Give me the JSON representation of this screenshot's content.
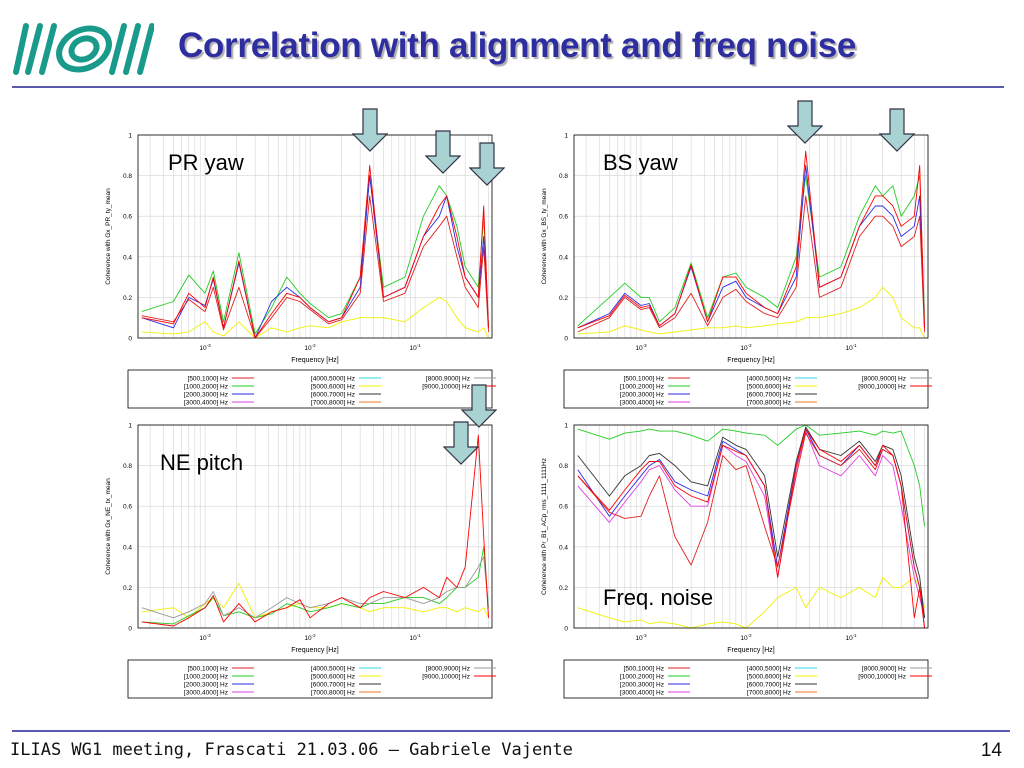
{
  "slide": {
    "title": "Correlation with alignment and freq noise",
    "footer": "ILIAS WG1 meeting, Frascati 21.03.06 – Gabriele Vajente",
    "page_number": "14",
    "logo_icon": "ego-virgo-logo",
    "colors": {
      "title": "#2e2ea0",
      "rule": "#5a5ab0",
      "logo": "#1a9a8a",
      "arrow_fill": "#a9d3d3"
    }
  },
  "legend": [
    {
      "label": "[500,1000] Hz",
      "color": "#e02020"
    },
    {
      "label": "[1000,2000] Hz",
      "color": "#22cc22"
    },
    {
      "label": "[2000,3000] Hz",
      "color": "#2a2ae8"
    },
    {
      "label": "[3000,4000] Hz",
      "color": "#e040e0"
    },
    {
      "label": "[4000,5000] Hz",
      "color": "#30d8e8"
    },
    {
      "label": "[5000,6000] Hz",
      "color": "#f0f000"
    },
    {
      "label": "[6000,7000] Hz",
      "color": "#333333"
    },
    {
      "label": "[7000,8000] Hz",
      "color": "#f07820"
    },
    {
      "label": "[8000,9000] Hz",
      "color": "#999999"
    },
    {
      "label": "[9000,10000] Hz",
      "color": "#ff0000"
    }
  ],
  "chart_data": [
    {
      "type": "line",
      "panel_label": "PR yaw",
      "xlabel": "Frequency [Hz]",
      "ylabel": "Coherence with Gx_PR_ty_mean",
      "xscale": "log",
      "xlim": [
        0.00023,
        0.54
      ],
      "ylim": [
        0,
        1
      ],
      "grid": true,
      "xticks": [
        {
          "base": "10",
          "exp": "-3",
          "value": 0.001
        },
        {
          "base": "10",
          "exp": "-2",
          "value": 0.01
        },
        {
          "base": "10",
          "exp": "-1",
          "value": 0.1
        }
      ],
      "yticks": [
        "0",
        "0.2",
        "0.4",
        "0.6",
        "0.8",
        "1"
      ],
      "legend_placement": "bottom",
      "x": [
        0.00025,
        0.0005,
        0.0007,
        0.001,
        0.0012,
        0.0015,
        0.0021,
        0.003,
        0.0043,
        0.006,
        0.008,
        0.01,
        0.015,
        0.02,
        0.03,
        0.037,
        0.05,
        0.08,
        0.12,
        0.17,
        0.2,
        0.25,
        0.3,
        0.4,
        0.45,
        0.5
      ],
      "series": [
        {
          "name": "[5000,6000] Hz",
          "color": "#f0f000",
          "values": [
            0.03,
            0.02,
            0.03,
            0.08,
            0.03,
            0.01,
            0.08,
            0.0,
            0.05,
            0.03,
            0.05,
            0.06,
            0.05,
            0.08,
            0.1,
            0.1,
            0.1,
            0.08,
            0.15,
            0.2,
            0.18,
            0.1,
            0.05,
            0.03,
            0.05,
            0.0
          ]
        },
        {
          "name": "[1000,2000] Hz",
          "color": "#22cc22",
          "values": [
            0.13,
            0.18,
            0.31,
            0.22,
            0.33,
            0.08,
            0.42,
            0.02,
            0.15,
            0.3,
            0.22,
            0.17,
            0.1,
            0.12,
            0.3,
            0.8,
            0.25,
            0.3,
            0.6,
            0.75,
            0.7,
            0.55,
            0.35,
            0.25,
            0.6,
            0.05
          ]
        },
        {
          "name": "[2000,3000] Hz",
          "color": "#2a2ae8",
          "values": [
            0.1,
            0.05,
            0.2,
            0.16,
            0.29,
            0.05,
            0.37,
            0.0,
            0.18,
            0.25,
            0.2,
            0.15,
            0.08,
            0.1,
            0.25,
            0.8,
            0.2,
            0.25,
            0.5,
            0.6,
            0.7,
            0.45,
            0.3,
            0.2,
            0.5,
            0.05
          ]
        },
        {
          "name": "[500,1000] Hz",
          "color": "#e02020",
          "values": [
            0.11,
            0.08,
            0.19,
            0.13,
            0.25,
            0.04,
            0.25,
            0.0,
            0.1,
            0.2,
            0.18,
            0.14,
            0.07,
            0.09,
            0.22,
            0.7,
            0.18,
            0.22,
            0.45,
            0.55,
            0.6,
            0.4,
            0.25,
            0.15,
            0.45,
            0.03
          ]
        },
        {
          "name": "[9000,10000] Hz",
          "color": "#ff0000",
          "values": [
            0.1,
            0.07,
            0.22,
            0.15,
            0.3,
            0.05,
            0.38,
            0.0,
            0.12,
            0.22,
            0.2,
            0.15,
            0.08,
            0.1,
            0.3,
            0.85,
            0.2,
            0.25,
            0.5,
            0.65,
            0.7,
            0.5,
            0.3,
            0.2,
            0.65,
            0.05
          ]
        }
      ]
    },
    {
      "type": "line",
      "panel_label": "BS yaw",
      "xlabel": "Frequency [Hz]",
      "ylabel": "Coherence with Gx_BS_ty_mean",
      "xscale": "log",
      "xlim": [
        0.00023,
        0.54
      ],
      "ylim": [
        0,
        1
      ],
      "grid": true,
      "xticks": [
        {
          "base": "10",
          "exp": "-3",
          "value": 0.001
        },
        {
          "base": "10",
          "exp": "-2",
          "value": 0.01
        },
        {
          "base": "10",
          "exp": "-1",
          "value": 0.1
        }
      ],
      "yticks": [
        "0",
        "0.2",
        "0.4",
        "0.6",
        "0.8",
        "1"
      ],
      "legend_placement": "bottom",
      "x": [
        0.00025,
        0.0005,
        0.0007,
        0.001,
        0.0012,
        0.0015,
        0.0021,
        0.003,
        0.0043,
        0.006,
        0.008,
        0.01,
        0.015,
        0.02,
        0.03,
        0.037,
        0.05,
        0.08,
        0.12,
        0.17,
        0.2,
        0.25,
        0.3,
        0.4,
        0.45,
        0.5
      ],
      "series": [
        {
          "name": "[5000,6000] Hz",
          "color": "#f0f000",
          "values": [
            0.02,
            0.03,
            0.06,
            0.04,
            0.03,
            0.02,
            0.03,
            0.04,
            0.05,
            0.05,
            0.06,
            0.05,
            0.06,
            0.07,
            0.08,
            0.1,
            0.1,
            0.12,
            0.15,
            0.2,
            0.25,
            0.2,
            0.1,
            0.05,
            0.05,
            0.0
          ]
        },
        {
          "name": "[1000,2000] Hz",
          "color": "#22cc22",
          "values": [
            0.06,
            0.2,
            0.27,
            0.2,
            0.2,
            0.08,
            0.15,
            0.37,
            0.1,
            0.3,
            0.32,
            0.25,
            0.2,
            0.15,
            0.4,
            0.8,
            0.3,
            0.35,
            0.6,
            0.75,
            0.7,
            0.75,
            0.6,
            0.7,
            0.8,
            0.1
          ]
        },
        {
          "name": "[2000,3000] Hz",
          "color": "#2a2ae8",
          "values": [
            0.05,
            0.12,
            0.22,
            0.16,
            0.17,
            0.06,
            0.12,
            0.35,
            0.08,
            0.25,
            0.28,
            0.2,
            0.15,
            0.12,
            0.3,
            0.85,
            0.25,
            0.3,
            0.55,
            0.65,
            0.65,
            0.6,
            0.5,
            0.55,
            0.7,
            0.05
          ]
        },
        {
          "name": "[500,1000] Hz",
          "color": "#e02020",
          "values": [
            0.03,
            0.1,
            0.2,
            0.14,
            0.15,
            0.05,
            0.1,
            0.22,
            0.06,
            0.2,
            0.24,
            0.18,
            0.12,
            0.1,
            0.25,
            0.7,
            0.2,
            0.25,
            0.5,
            0.6,
            0.6,
            0.55,
            0.45,
            0.5,
            0.6,
            0.03
          ]
        },
        {
          "name": "[9000,10000] Hz",
          "color": "#ff0000",
          "values": [
            0.05,
            0.11,
            0.21,
            0.15,
            0.16,
            0.06,
            0.12,
            0.36,
            0.08,
            0.3,
            0.3,
            0.22,
            0.15,
            0.12,
            0.35,
            0.92,
            0.25,
            0.3,
            0.55,
            0.7,
            0.7,
            0.65,
            0.55,
            0.6,
            0.85,
            0.05
          ]
        }
      ]
    },
    {
      "type": "line",
      "panel_label": "NE pitch",
      "xlabel": "Frequency [Hz]",
      "ylabel": "Coherence with Gx_NE_tx_mean",
      "xscale": "log",
      "xlim": [
        0.00023,
        0.54
      ],
      "ylim": [
        0,
        1
      ],
      "grid": true,
      "xticks": [
        {
          "base": "10",
          "exp": "-3",
          "value": 0.001
        },
        {
          "base": "10",
          "exp": "-2",
          "value": 0.01
        },
        {
          "base": "10",
          "exp": "-1",
          "value": 0.1
        }
      ],
      "yticks": [
        "0",
        "0.2",
        "0.4",
        "0.6",
        "0.8",
        "1"
      ],
      "legend_placement": "bottom",
      "x": [
        0.00025,
        0.0005,
        0.0007,
        0.001,
        0.0012,
        0.0015,
        0.0021,
        0.003,
        0.0043,
        0.006,
        0.008,
        0.01,
        0.015,
        0.02,
        0.03,
        0.037,
        0.05,
        0.08,
        0.12,
        0.17,
        0.2,
        0.25,
        0.3,
        0.4,
        0.45,
        0.5
      ],
      "series": [
        {
          "name": "[5000,6000] Hz",
          "color": "#f0f000",
          "values": [
            0.08,
            0.1,
            0.05,
            0.12,
            0.15,
            0.1,
            0.22,
            0.05,
            0.08,
            0.1,
            0.12,
            0.1,
            0.1,
            0.12,
            0.1,
            0.08,
            0.1,
            0.1,
            0.08,
            0.1,
            0.1,
            0.08,
            0.1,
            0.08,
            0.1,
            0.05
          ]
        },
        {
          "name": "[1000,2000] Hz",
          "color": "#22cc22",
          "values": [
            0.03,
            0.02,
            0.06,
            0.1,
            0.15,
            0.06,
            0.08,
            0.05,
            0.07,
            0.12,
            0.1,
            0.08,
            0.1,
            0.12,
            0.1,
            0.12,
            0.12,
            0.15,
            0.15,
            0.12,
            0.15,
            0.2,
            0.2,
            0.25,
            0.4,
            0.1
          ]
        },
        {
          "name": "[8000,9000] Hz",
          "color": "#999999",
          "values": [
            0.1,
            0.05,
            0.08,
            0.12,
            0.18,
            0.06,
            0.1,
            0.05,
            0.1,
            0.15,
            0.12,
            0.1,
            0.12,
            0.15,
            0.12,
            0.12,
            0.15,
            0.15,
            0.12,
            0.15,
            0.18,
            0.2,
            0.2,
            0.3,
            0.35,
            0.1
          ]
        },
        {
          "name": "[9000,10000] Hz",
          "color": "#ff0000",
          "values": [
            0.03,
            0.01,
            0.05,
            0.1,
            0.16,
            0.03,
            0.12,
            0.03,
            0.08,
            0.1,
            0.14,
            0.05,
            0.12,
            0.15,
            0.1,
            0.15,
            0.18,
            0.15,
            0.2,
            0.15,
            0.25,
            0.2,
            0.3,
            0.95,
            0.45,
            0.05
          ]
        }
      ]
    },
    {
      "type": "line",
      "panel_label": "Freq. noise",
      "xlabel": "Frequency [Hz]",
      "ylabel": "Coherence with Pr_B1_ACp_rms_1111_1111Hz",
      "xscale": "log",
      "xlim": [
        0.00023,
        0.54
      ],
      "ylim": [
        0,
        1
      ],
      "grid": true,
      "xticks": [
        {
          "base": "10",
          "exp": "-3",
          "value": 0.001
        },
        {
          "base": "10",
          "exp": "-2",
          "value": 0.01
        },
        {
          "base": "10",
          "exp": "-1",
          "value": 0.1
        }
      ],
      "yticks": [
        "0",
        "0.2",
        "0.4",
        "0.6",
        "0.8",
        "1"
      ],
      "legend_placement": "bottom",
      "x": [
        0.00025,
        0.0005,
        0.0007,
        0.001,
        0.0012,
        0.0015,
        0.0021,
        0.003,
        0.0043,
        0.006,
        0.008,
        0.01,
        0.015,
        0.02,
        0.03,
        0.037,
        0.05,
        0.08,
        0.12,
        0.17,
        0.2,
        0.25,
        0.3,
        0.4,
        0.45,
        0.5
      ],
      "series": [
        {
          "name": "[5000,6000] Hz",
          "color": "#f0f000",
          "values": [
            0.1,
            0.05,
            0.03,
            0.04,
            0.02,
            0.03,
            0.02,
            0.0,
            0.02,
            0.03,
            0.02,
            0.0,
            0.08,
            0.15,
            0.2,
            0.1,
            0.2,
            0.15,
            0.2,
            0.15,
            0.25,
            0.2,
            0.2,
            0.25,
            0.2,
            0.1
          ]
        },
        {
          "name": "[1000,2000] Hz",
          "color": "#22cc22",
          "values": [
            0.98,
            0.93,
            0.96,
            0.97,
            0.98,
            0.97,
            0.97,
            0.95,
            0.92,
            0.98,
            0.97,
            0.96,
            0.95,
            0.9,
            0.98,
            1.0,
            0.95,
            0.96,
            0.97,
            0.95,
            0.97,
            0.96,
            0.97,
            0.8,
            0.7,
            0.5
          ]
        },
        {
          "name": "[2000,3000] Hz",
          "color": "#2a2ae8",
          "values": [
            0.78,
            0.55,
            0.65,
            0.75,
            0.8,
            0.83,
            0.72,
            0.68,
            0.65,
            0.92,
            0.88,
            0.85,
            0.7,
            0.3,
            0.8,
            0.98,
            0.85,
            0.8,
            0.9,
            0.8,
            0.88,
            0.85,
            0.7,
            0.3,
            0.2,
            0.05
          ]
        },
        {
          "name": "[3000,4000] Hz",
          "color": "#e040e0",
          "values": [
            0.7,
            0.52,
            0.62,
            0.72,
            0.78,
            0.8,
            0.68,
            0.6,
            0.6,
            0.9,
            0.85,
            0.82,
            0.65,
            0.25,
            0.78,
            0.97,
            0.8,
            0.75,
            0.85,
            0.75,
            0.85,
            0.8,
            0.6,
            0.25,
            0.15,
            0.05
          ]
        },
        {
          "name": "[6000,7000] Hz",
          "color": "#333333",
          "values": [
            0.85,
            0.65,
            0.75,
            0.8,
            0.85,
            0.86,
            0.8,
            0.72,
            0.7,
            0.94,
            0.9,
            0.88,
            0.75,
            0.35,
            0.82,
            0.99,
            0.88,
            0.85,
            0.92,
            0.82,
            0.9,
            0.88,
            0.75,
            0.35,
            0.25,
            0.05
          ]
        },
        {
          "name": "[500,1000] Hz",
          "color": "#e02020",
          "values": [
            0.75,
            0.57,
            0.54,
            0.55,
            0.65,
            0.75,
            0.45,
            0.31,
            0.52,
            0.85,
            0.78,
            0.8,
            0.5,
            0.3,
            0.75,
            0.96,
            0.85,
            0.8,
            0.88,
            0.78,
            0.88,
            0.85,
            0.7,
            0.3,
            0.2,
            0.0
          ]
        },
        {
          "name": "[9000,10000] Hz",
          "color": "#ff0000",
          "values": [
            0.75,
            0.58,
            0.68,
            0.78,
            0.82,
            0.82,
            0.7,
            0.65,
            0.62,
            0.9,
            0.87,
            0.85,
            0.7,
            0.25,
            0.8,
            0.98,
            0.88,
            0.82,
            0.9,
            0.8,
            0.9,
            0.85,
            0.7,
            0.05,
            0.2,
            0.0
          ]
        }
      ]
    }
  ]
}
